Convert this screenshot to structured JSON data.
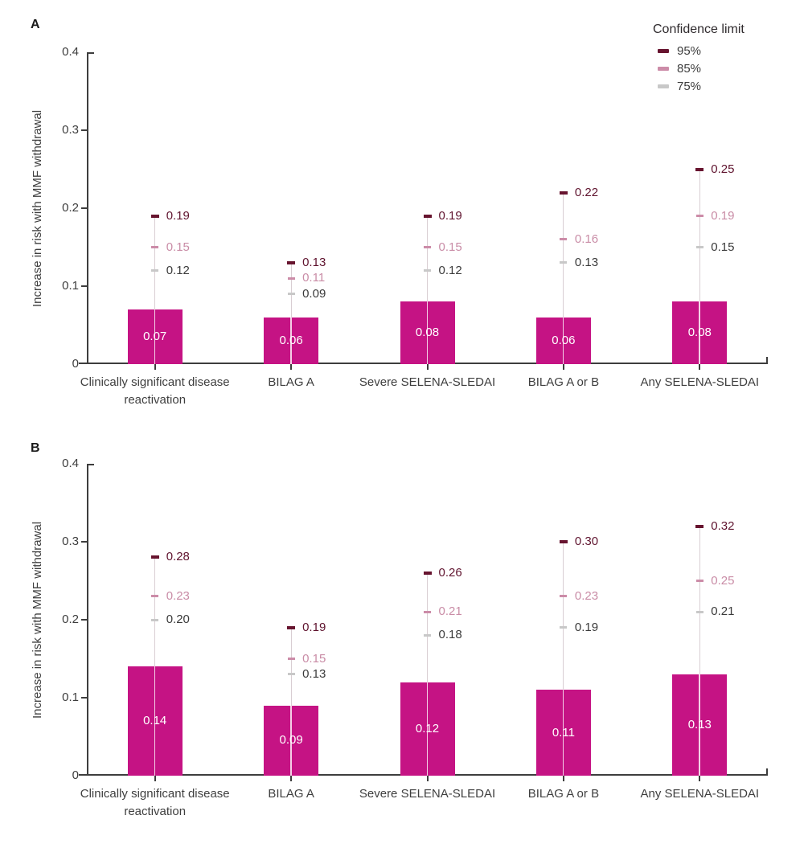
{
  "colors": {
    "bar": "#c51384",
    "bar_value_text": "#ffffff",
    "ci95": "#67142f",
    "ci85": "#cc8ca8",
    "ci75": "#c8c8c8",
    "ci95_label_text": "#5f132e",
    "ci85_label_text": "#c98ca6",
    "ci75_label_text": "#3a3a3a",
    "axis": "#3d3d3d",
    "text": "#3f3f3f",
    "connector": "#d9ced3",
    "connector_on_bar": "#ffffff"
  },
  "legend": {
    "title": "Confidence limit",
    "items": [
      {
        "label": "95%",
        "color": "#67142f"
      },
      {
        "label": "85%",
        "color": "#cc8ca8"
      },
      {
        "label": "75%",
        "color": "#c8c8c8"
      }
    ]
  },
  "chart_data": [
    {
      "type": "bar",
      "panel": "A",
      "ylabel": "Increase in risk with MMF withdrawal",
      "xlabel": "",
      "ylim": [
        0,
        0.4
      ],
      "yticks": [
        0,
        0.1,
        0.2,
        0.3,
        0.4
      ],
      "grid": false,
      "legend_position": "top-right",
      "categories": [
        "Clinically significant disease reactivation",
        "BILAG A",
        "Severe SELENA-SLEDAI",
        "BILAG A or B",
        "Any SELENA-SLEDAI"
      ],
      "values": [
        0.07,
        0.06,
        0.08,
        0.06,
        0.08
      ],
      "confidence_limits": {
        "95": [
          0.19,
          0.13,
          0.19,
          0.22,
          0.25
        ],
        "85": [
          0.15,
          0.11,
          0.15,
          0.16,
          0.19
        ],
        "75": [
          0.12,
          0.09,
          0.12,
          0.13,
          0.15
        ]
      }
    },
    {
      "type": "bar",
      "panel": "B",
      "ylabel": "Increase in risk with MMF withdrawal",
      "xlabel": "",
      "ylim": [
        0,
        0.4
      ],
      "yticks": [
        0,
        0.1,
        0.2,
        0.3,
        0.4
      ],
      "grid": false,
      "legend_position": "none",
      "categories": [
        "Clinically significant disease reactivation",
        "BILAG A",
        "Severe SELENA-SLEDAI",
        "BILAG A or B",
        "Any SELENA-SLEDAI"
      ],
      "values": [
        0.14,
        0.09,
        0.12,
        0.11,
        0.13
      ],
      "confidence_limits": {
        "95": [
          0.28,
          0.19,
          0.26,
          0.3,
          0.32
        ],
        "85": [
          0.23,
          0.15,
          0.21,
          0.23,
          0.25
        ],
        "75": [
          0.2,
          0.13,
          0.18,
          0.19,
          0.21
        ]
      }
    }
  ]
}
